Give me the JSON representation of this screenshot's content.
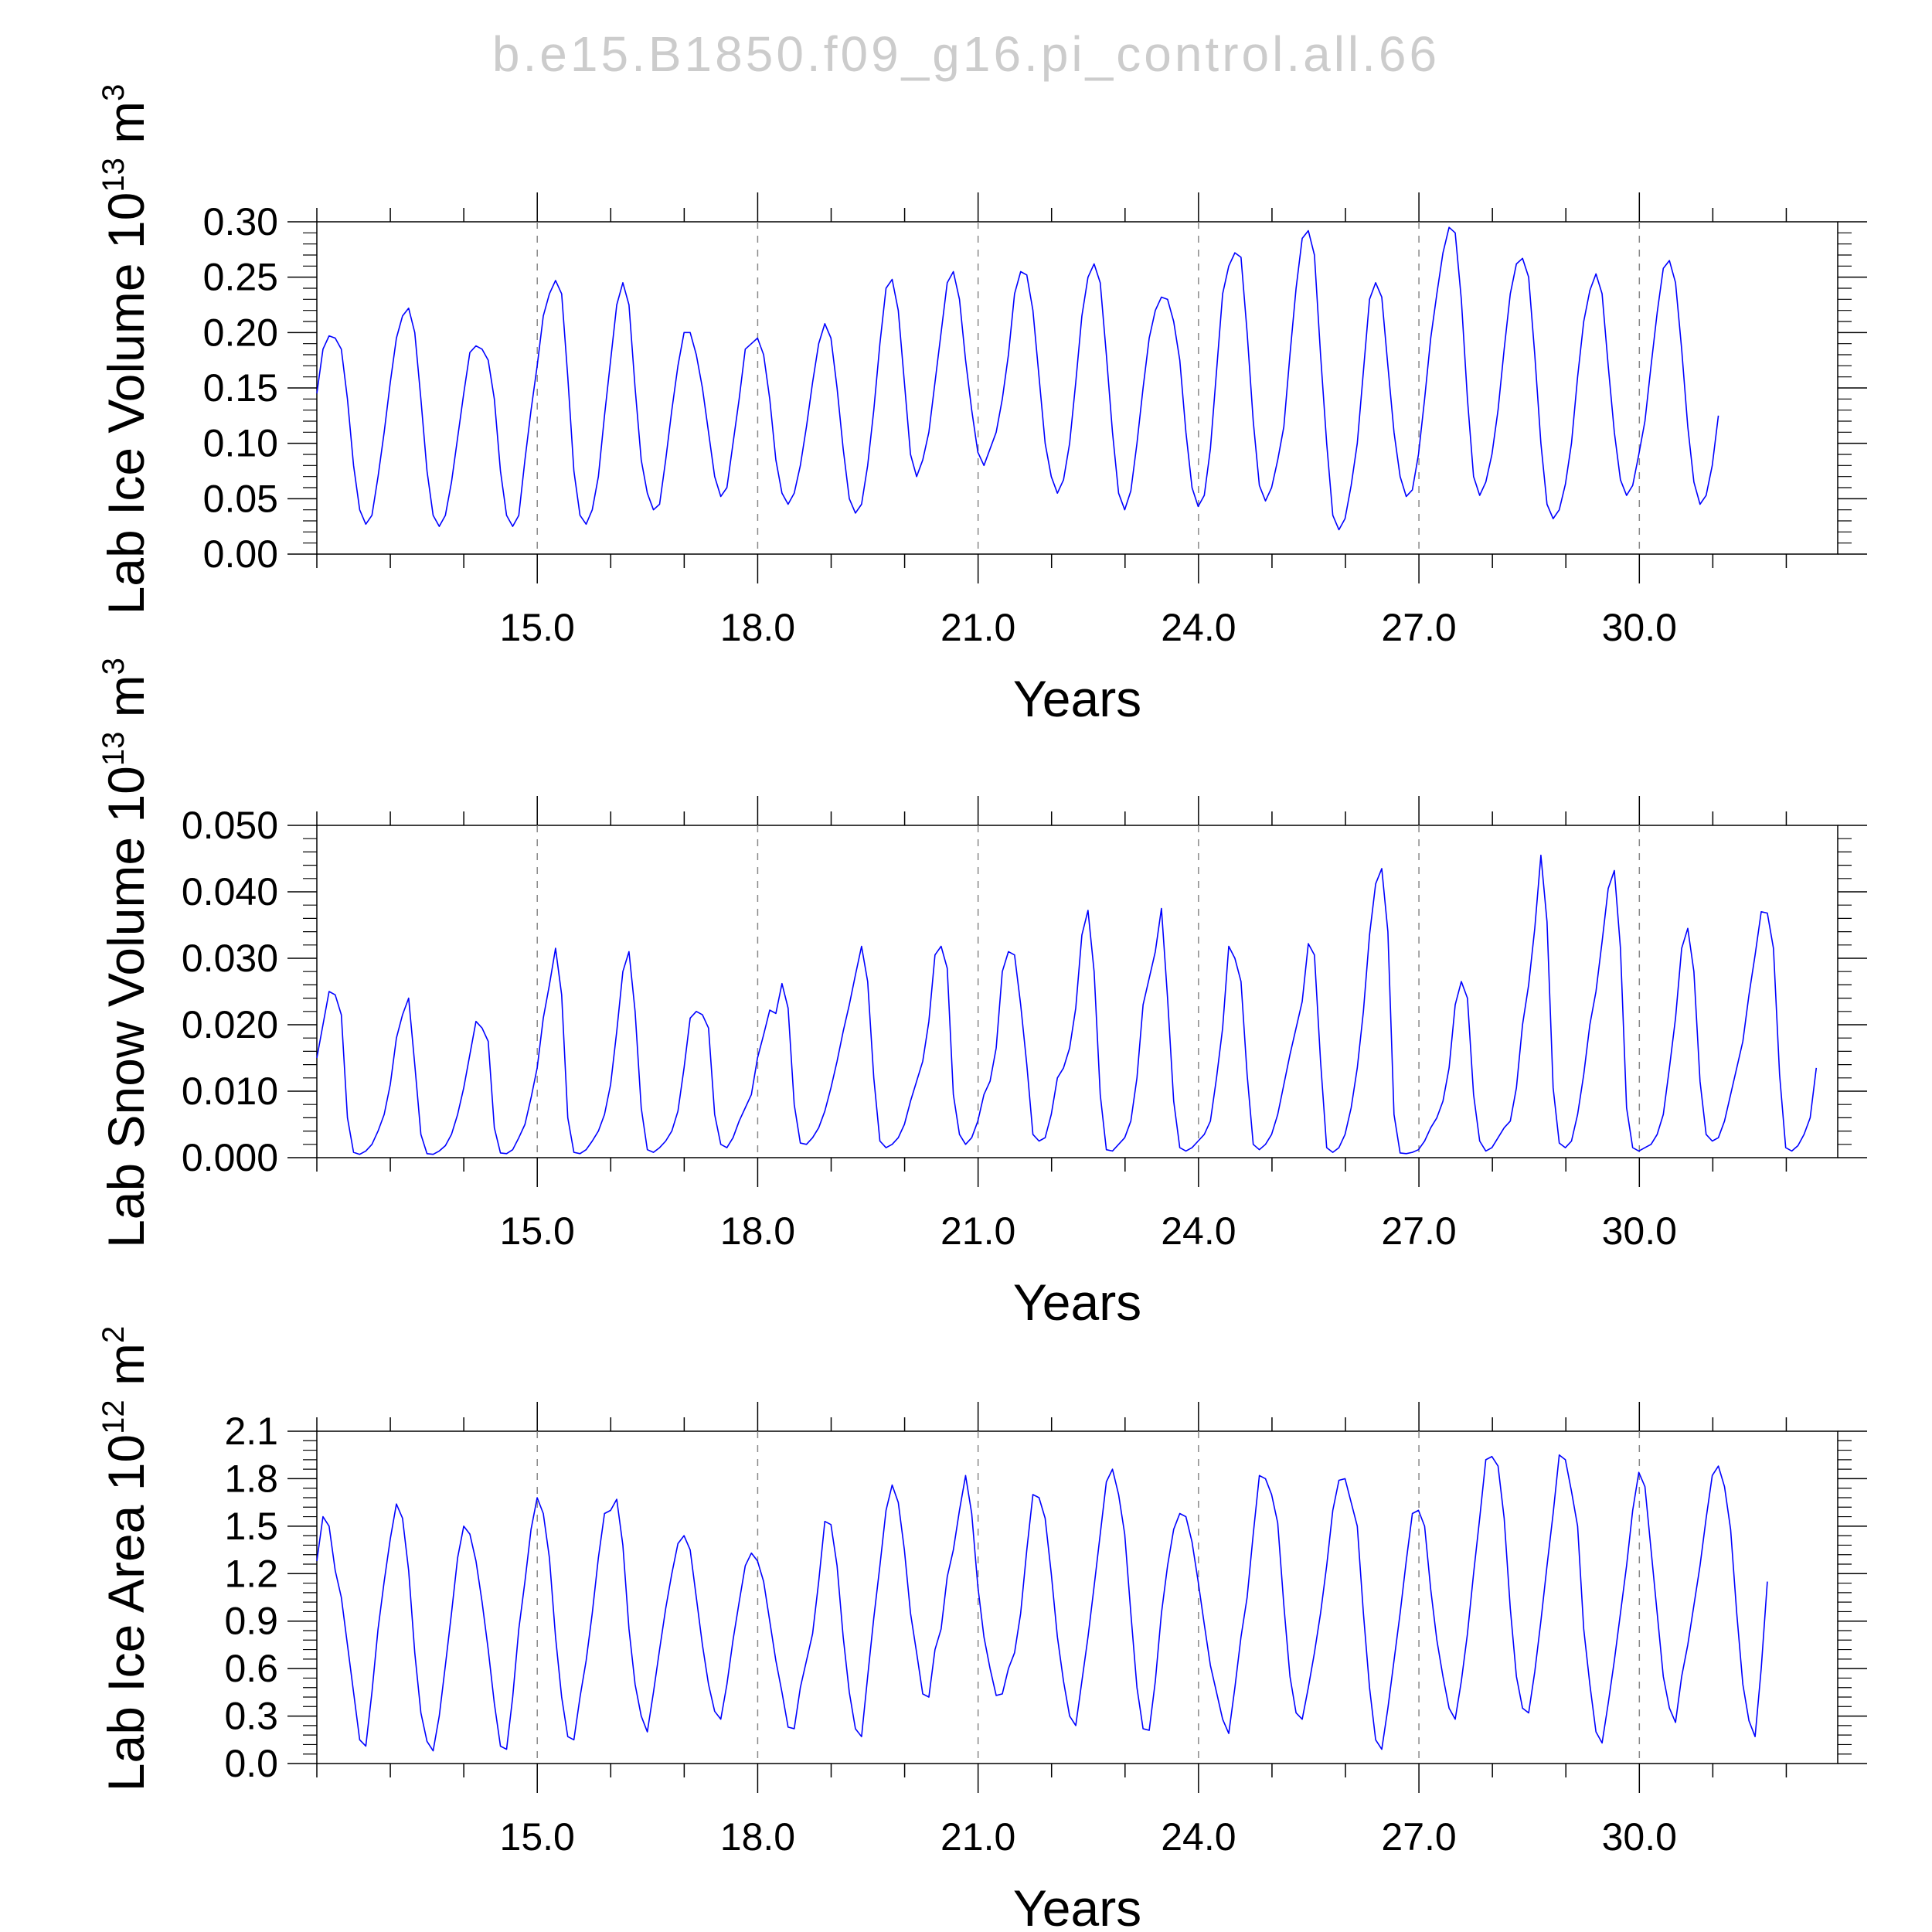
{
  "figure": {
    "title": "b.e15.B1850.f09_g16.pi_control.all.66"
  },
  "chart_data": [
    {
      "type": "line",
      "ylabel": "Lab Ice Volume 10",
      "ylabel_exp": "13",
      "ylabel_unit": " m",
      "ylabel_unit_exp": "3",
      "xlabel": "Years",
      "xlim": [
        12.0,
        32.7
      ],
      "ylim": [
        0.0,
        0.3
      ],
      "xticks": [
        15.0,
        18.0,
        21.0,
        24.0,
        27.0,
        30.0
      ],
      "xtick_labels": [
        "15.0",
        "18.0",
        "21.0",
        "24.0",
        "27.0",
        "30.0"
      ],
      "yticks": [
        0.0,
        0.05,
        0.1,
        0.15,
        0.2,
        0.25,
        0.3
      ],
      "ytick_labels": [
        "0.00",
        "0.05",
        "0.10",
        "0.15",
        "0.20",
        "0.25",
        "0.30"
      ],
      "vertical_dashed_gridlines": true,
      "line_color": "#0000ff",
      "x_start": 12.0,
      "x_step": 0.0833,
      "series": [
        {
          "values": [
            0.145,
            0.185,
            0.197,
            0.195,
            0.185,
            0.14,
            0.08,
            0.04,
            0.027,
            0.035,
            0.07,
            0.11,
            0.155,
            0.195,
            0.215,
            0.222,
            0.2,
            0.14,
            0.075,
            0.035,
            0.025,
            0.035,
            0.065,
            0.105,
            0.145,
            0.182,
            0.188,
            0.185,
            0.175,
            0.14,
            0.075,
            0.035,
            0.025,
            0.035,
            0.085,
            0.13,
            0.17,
            0.215,
            0.235,
            0.247,
            0.235,
            0.16,
            0.075,
            0.035,
            0.027,
            0.04,
            0.07,
            0.125,
            0.175,
            0.225,
            0.245,
            0.225,
            0.15,
            0.085,
            0.055,
            0.04,
            0.045,
            0.085,
            0.13,
            0.17,
            0.2,
            0.2,
            0.18,
            0.15,
            0.11,
            0.07,
            0.052,
            0.06,
            0.1,
            0.14,
            0.185,
            0.19,
            0.195,
            0.18,
            0.14,
            0.085,
            0.055,
            0.045,
            0.055,
            0.08,
            0.115,
            0.155,
            0.19,
            0.208,
            0.195,
            0.15,
            0.095,
            0.05,
            0.037,
            0.045,
            0.08,
            0.13,
            0.19,
            0.24,
            0.248,
            0.22,
            0.155,
            0.09,
            0.07,
            0.085,
            0.11,
            0.155,
            0.2,
            0.245,
            0.255,
            0.23,
            0.175,
            0.13,
            0.092,
            0.08,
            0.095,
            0.11,
            0.14,
            0.18,
            0.235,
            0.255,
            0.252,
            0.22,
            0.16,
            0.1,
            0.07,
            0.055,
            0.067,
            0.1,
            0.155,
            0.215,
            0.25,
            0.262,
            0.245,
            0.18,
            0.11,
            0.055,
            0.04,
            0.057,
            0.1,
            0.15,
            0.195,
            0.22,
            0.232,
            0.23,
            0.21,
            0.175,
            0.11,
            0.06,
            0.043,
            0.053,
            0.095,
            0.165,
            0.235,
            0.26,
            0.272,
            0.268,
            0.2,
            0.12,
            0.062,
            0.048,
            0.06,
            0.085,
            0.115,
            0.18,
            0.24,
            0.285,
            0.292,
            0.27,
            0.18,
            0.1,
            0.035,
            0.022,
            0.032,
            0.062,
            0.1,
            0.165,
            0.23,
            0.245,
            0.232,
            0.17,
            0.11,
            0.07,
            0.052,
            0.058,
            0.09,
            0.14,
            0.195,
            0.235,
            0.272,
            0.295,
            0.29,
            0.23,
            0.14,
            0.07,
            0.053,
            0.065,
            0.09,
            0.13,
            0.185,
            0.235,
            0.262,
            0.267,
            0.25,
            0.18,
            0.1,
            0.045,
            0.032,
            0.04,
            0.063,
            0.1,
            0.16,
            0.21,
            0.238,
            0.253,
            0.235,
            0.17,
            0.11,
            0.067,
            0.053,
            0.062,
            0.09,
            0.12,
            0.17,
            0.218,
            0.258,
            0.265,
            0.245,
            0.185,
            0.115,
            0.065,
            0.045,
            0.053,
            0.08,
            0.125
          ]
        }
      ]
    },
    {
      "type": "line",
      "ylabel": "Lab Snow Volume 10",
      "ylabel_exp": "13",
      "ylabel_unit": " m",
      "ylabel_unit_exp": "3",
      "xlabel": "Years",
      "xlim": [
        12.0,
        32.7
      ],
      "ylim": [
        0.0,
        0.05
      ],
      "xticks": [
        15.0,
        18.0,
        21.0,
        24.0,
        27.0,
        30.0
      ],
      "xtick_labels": [
        "15.0",
        "18.0",
        "21.0",
        "24.0",
        "27.0",
        "30.0"
      ],
      "yticks": [
        0.0,
        0.01,
        0.02,
        0.03,
        0.04,
        0.05
      ],
      "ytick_labels": [
        "0.000",
        "0.010",
        "0.020",
        "0.030",
        "0.040",
        "0.050"
      ],
      "vertical_dashed_gridlines": true,
      "line_color": "#0000ff",
      "x_start": 12.0,
      "x_step": 0.0833,
      "series": [
        {
          "values": [
            0.015,
            0.02,
            0.025,
            0.0245,
            0.0215,
            0.006,
            0.0008,
            0.0005,
            0.001,
            0.002,
            0.004,
            0.0065,
            0.011,
            0.018,
            0.0215,
            0.024,
            0.014,
            0.0035,
            0.0006,
            0.0005,
            0.001,
            0.0018,
            0.0035,
            0.0065,
            0.0105,
            0.0155,
            0.0205,
            0.0195,
            0.0175,
            0.0045,
            0.0007,
            0.0006,
            0.0012,
            0.003,
            0.005,
            0.009,
            0.0135,
            0.021,
            0.026,
            0.0315,
            0.0245,
            0.006,
            0.0008,
            0.0006,
            0.0012,
            0.0025,
            0.004,
            0.0065,
            0.011,
            0.019,
            0.028,
            0.031,
            0.022,
            0.0075,
            0.0012,
            0.0008,
            0.0015,
            0.0025,
            0.004,
            0.007,
            0.0135,
            0.021,
            0.022,
            0.0215,
            0.0195,
            0.0065,
            0.002,
            0.0015,
            0.003,
            0.0055,
            0.0075,
            0.0095,
            0.015,
            0.0185,
            0.0222,
            0.0217,
            0.0262,
            0.0225,
            0.008,
            0.0022,
            0.002,
            0.003,
            0.0045,
            0.007,
            0.0105,
            0.0145,
            0.019,
            0.023,
            0.0275,
            0.0318,
            0.0265,
            0.012,
            0.0025,
            0.0015,
            0.002,
            0.003,
            0.005,
            0.0085,
            0.0115,
            0.0145,
            0.0205,
            0.0305,
            0.0318,
            0.0285,
            0.0095,
            0.0035,
            0.002,
            0.003,
            0.0055,
            0.0095,
            0.0115,
            0.0165,
            0.028,
            0.031,
            0.0305,
            0.023,
            0.014,
            0.0035,
            0.0025,
            0.003,
            0.0065,
            0.012,
            0.0135,
            0.0165,
            0.0225,
            0.0335,
            0.0372,
            0.028,
            0.0095,
            0.0012,
            0.001,
            0.002,
            0.003,
            0.0055,
            0.012,
            0.023,
            0.027,
            0.031,
            0.0375,
            0.024,
            0.0085,
            0.0015,
            0.001,
            0.0015,
            0.0025,
            0.0035,
            0.0055,
            0.012,
            0.0195,
            0.0318,
            0.03,
            0.0265,
            0.0125,
            0.002,
            0.0012,
            0.002,
            0.0035,
            0.0065,
            0.011,
            0.0155,
            0.0195,
            0.0235,
            0.0322,
            0.0305,
            0.0145,
            0.0015,
            0.0008,
            0.0015,
            0.0035,
            0.0075,
            0.0135,
            0.022,
            0.0335,
            0.0412,
            0.0435,
            0.034,
            0.0065,
            0.0007,
            0.0006,
            0.0008,
            0.0012,
            0.0025,
            0.0045,
            0.006,
            0.0085,
            0.0135,
            0.023,
            0.0265,
            0.024,
            0.0095,
            0.0025,
            0.001,
            0.0015,
            0.003,
            0.0045,
            0.0055,
            0.0105,
            0.02,
            0.026,
            0.0345,
            0.0455,
            0.0355,
            0.0105,
            0.0022,
            0.0015,
            0.0025,
            0.0065,
            0.0125,
            0.02,
            0.025,
            0.0325,
            0.0405,
            0.0432,
            0.0315,
            0.0075,
            0.0015,
            0.001,
            0.0015,
            0.002,
            0.0035,
            0.0065,
            0.0135,
            0.021,
            0.0315,
            0.0345,
            0.028,
            0.0115,
            0.0035,
            0.0025,
            0.003,
            0.0055,
            0.0095,
            0.0135,
            0.0175,
            0.0245,
            0.0305,
            0.037,
            0.0368,
            0.0315,
            0.0125,
            0.0015,
            0.001,
            0.0018,
            0.0035,
            0.006,
            0.0135
          ]
        }
      ]
    },
    {
      "type": "line",
      "ylabel": "Lab Ice Area 10",
      "ylabel_exp": "12",
      "ylabel_unit": " m",
      "ylabel_unit_exp": "2",
      "xlabel": "Years",
      "xlim": [
        12.0,
        32.7
      ],
      "ylim": [
        0.0,
        2.1
      ],
      "xticks": [
        15.0,
        18.0,
        21.0,
        24.0,
        27.0,
        30.0
      ],
      "xtick_labels": [
        "15.0",
        "18.0",
        "21.0",
        "24.0",
        "27.0",
        "30.0"
      ],
      "yticks": [
        0.0,
        0.3,
        0.6,
        0.9,
        1.2,
        1.5,
        1.8,
        2.1
      ],
      "ytick_labels": [
        "0.0",
        "0.3",
        "0.6",
        "0.9",
        "1.2",
        "1.5",
        "1.8",
        "2.1"
      ],
      "vertical_dashed_gridlines": true,
      "line_color": "#0000ff",
      "x_start": 12.0,
      "x_step": 0.0833,
      "series": [
        {
          "values": [
            1.28,
            1.56,
            1.5,
            1.22,
            1.05,
            0.75,
            0.45,
            0.15,
            0.11,
            0.45,
            0.85,
            1.15,
            1.42,
            1.64,
            1.55,
            1.22,
            0.7,
            0.32,
            0.14,
            0.08,
            0.3,
            0.62,
            0.95,
            1.3,
            1.5,
            1.45,
            1.28,
            1.02,
            0.72,
            0.38,
            0.11,
            0.09,
            0.42,
            0.85,
            1.15,
            1.48,
            1.68,
            1.58,
            1.3,
            0.8,
            0.42,
            0.17,
            0.15,
            0.42,
            0.65,
            0.95,
            1.3,
            1.58,
            1.6,
            1.67,
            1.38,
            0.85,
            0.5,
            0.3,
            0.2,
            0.45,
            0.72,
            0.98,
            1.2,
            1.39,
            1.44,
            1.35,
            1.05,
            0.75,
            0.5,
            0.33,
            0.28,
            0.5,
            0.78,
            1.02,
            1.25,
            1.33,
            1.28,
            1.15,
            0.9,
            0.65,
            0.45,
            0.23,
            0.22,
            0.48,
            0.65,
            0.82,
            1.15,
            1.53,
            1.51,
            1.25,
            0.8,
            0.45,
            0.22,
            0.17,
            0.55,
            0.92,
            1.25,
            1.6,
            1.76,
            1.65,
            1.35,
            0.95,
            0.7,
            0.44,
            0.42,
            0.72,
            0.85,
            1.18,
            1.35,
            1.6,
            1.82,
            1.58,
            1.12,
            0.8,
            0.6,
            0.43,
            0.44,
            0.6,
            0.7,
            0.95,
            1.35,
            1.7,
            1.68,
            1.55,
            1.2,
            0.8,
            0.52,
            0.3,
            0.24,
            0.52,
            0.8,
            1.12,
            1.45,
            1.78,
            1.86,
            1.7,
            1.45,
            0.95,
            0.48,
            0.22,
            0.21,
            0.52,
            0.95,
            1.25,
            1.48,
            1.58,
            1.56,
            1.4,
            1.15,
            0.88,
            0.62,
            0.45,
            0.28,
            0.19,
            0.48,
            0.8,
            1.05,
            1.45,
            1.82,
            1.8,
            1.7,
            1.52,
            1.0,
            0.55,
            0.32,
            0.28,
            0.48,
            0.7,
            0.95,
            1.25,
            1.6,
            1.79,
            1.8,
            1.65,
            1.5,
            0.95,
            0.48,
            0.15,
            0.09,
            0.35,
            0.65,
            0.95,
            1.28,
            1.58,
            1.6,
            1.5,
            1.1,
            0.78,
            0.55,
            0.35,
            0.28,
            0.52,
            0.82,
            1.2,
            1.55,
            1.92,
            1.94,
            1.88,
            1.55,
            0.98,
            0.55,
            0.35,
            0.32,
            0.58,
            0.9,
            1.25,
            1.58,
            1.95,
            1.92,
            1.72,
            1.5,
            0.85,
            0.5,
            0.2,
            0.13,
            0.38,
            0.65,
            0.95,
            1.25,
            1.6,
            1.84,
            1.75,
            1.35,
            0.95,
            0.55,
            0.35,
            0.26,
            0.55,
            0.75,
            1.0,
            1.25,
            1.55,
            1.82,
            1.88,
            1.75,
            1.48,
            0.95,
            0.5,
            0.27,
            0.17,
            0.6,
            1.15
          ]
        }
      ]
    }
  ]
}
